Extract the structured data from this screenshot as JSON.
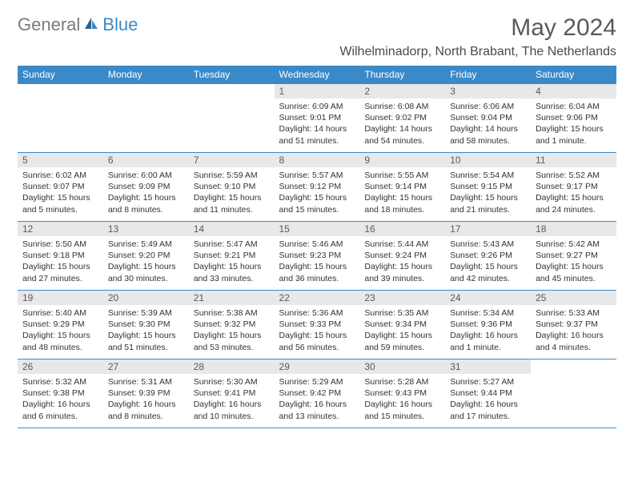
{
  "logo": {
    "text1": "General",
    "text2": "Blue"
  },
  "title": "May 2024",
  "location": "Wilhelminadorp, North Brabant, The Netherlands",
  "colors": {
    "header_bg": "#3a8ac9",
    "header_text": "#ffffff",
    "daynum_bg": "#e8e8e8",
    "daynum_text": "#5a5a5a",
    "body_text": "#333333",
    "border": "#3a8ac9",
    "logo_gray": "#7a7a7a",
    "logo_blue": "#3a8ac9"
  },
  "weekdays": [
    "Sunday",
    "Monday",
    "Tuesday",
    "Wednesday",
    "Thursday",
    "Friday",
    "Saturday"
  ],
  "weeks": [
    [
      null,
      null,
      null,
      {
        "n": "1",
        "sr": "Sunrise: 6:09 AM",
        "ss": "Sunset: 9:01 PM",
        "dl": "Daylight: 14 hours and 51 minutes."
      },
      {
        "n": "2",
        "sr": "Sunrise: 6:08 AM",
        "ss": "Sunset: 9:02 PM",
        "dl": "Daylight: 14 hours and 54 minutes."
      },
      {
        "n": "3",
        "sr": "Sunrise: 6:06 AM",
        "ss": "Sunset: 9:04 PM",
        "dl": "Daylight: 14 hours and 58 minutes."
      },
      {
        "n": "4",
        "sr": "Sunrise: 6:04 AM",
        "ss": "Sunset: 9:06 PM",
        "dl": "Daylight: 15 hours and 1 minute."
      }
    ],
    [
      {
        "n": "5",
        "sr": "Sunrise: 6:02 AM",
        "ss": "Sunset: 9:07 PM",
        "dl": "Daylight: 15 hours and 5 minutes."
      },
      {
        "n": "6",
        "sr": "Sunrise: 6:00 AM",
        "ss": "Sunset: 9:09 PM",
        "dl": "Daylight: 15 hours and 8 minutes."
      },
      {
        "n": "7",
        "sr": "Sunrise: 5:59 AM",
        "ss": "Sunset: 9:10 PM",
        "dl": "Daylight: 15 hours and 11 minutes."
      },
      {
        "n": "8",
        "sr": "Sunrise: 5:57 AM",
        "ss": "Sunset: 9:12 PM",
        "dl": "Daylight: 15 hours and 15 minutes."
      },
      {
        "n": "9",
        "sr": "Sunrise: 5:55 AM",
        "ss": "Sunset: 9:14 PM",
        "dl": "Daylight: 15 hours and 18 minutes."
      },
      {
        "n": "10",
        "sr": "Sunrise: 5:54 AM",
        "ss": "Sunset: 9:15 PM",
        "dl": "Daylight: 15 hours and 21 minutes."
      },
      {
        "n": "11",
        "sr": "Sunrise: 5:52 AM",
        "ss": "Sunset: 9:17 PM",
        "dl": "Daylight: 15 hours and 24 minutes."
      }
    ],
    [
      {
        "n": "12",
        "sr": "Sunrise: 5:50 AM",
        "ss": "Sunset: 9:18 PM",
        "dl": "Daylight: 15 hours and 27 minutes."
      },
      {
        "n": "13",
        "sr": "Sunrise: 5:49 AM",
        "ss": "Sunset: 9:20 PM",
        "dl": "Daylight: 15 hours and 30 minutes."
      },
      {
        "n": "14",
        "sr": "Sunrise: 5:47 AM",
        "ss": "Sunset: 9:21 PM",
        "dl": "Daylight: 15 hours and 33 minutes."
      },
      {
        "n": "15",
        "sr": "Sunrise: 5:46 AM",
        "ss": "Sunset: 9:23 PM",
        "dl": "Daylight: 15 hours and 36 minutes."
      },
      {
        "n": "16",
        "sr": "Sunrise: 5:44 AM",
        "ss": "Sunset: 9:24 PM",
        "dl": "Daylight: 15 hours and 39 minutes."
      },
      {
        "n": "17",
        "sr": "Sunrise: 5:43 AM",
        "ss": "Sunset: 9:26 PM",
        "dl": "Daylight: 15 hours and 42 minutes."
      },
      {
        "n": "18",
        "sr": "Sunrise: 5:42 AM",
        "ss": "Sunset: 9:27 PM",
        "dl": "Daylight: 15 hours and 45 minutes."
      }
    ],
    [
      {
        "n": "19",
        "sr": "Sunrise: 5:40 AM",
        "ss": "Sunset: 9:29 PM",
        "dl": "Daylight: 15 hours and 48 minutes."
      },
      {
        "n": "20",
        "sr": "Sunrise: 5:39 AM",
        "ss": "Sunset: 9:30 PM",
        "dl": "Daylight: 15 hours and 51 minutes."
      },
      {
        "n": "21",
        "sr": "Sunrise: 5:38 AM",
        "ss": "Sunset: 9:32 PM",
        "dl": "Daylight: 15 hours and 53 minutes."
      },
      {
        "n": "22",
        "sr": "Sunrise: 5:36 AM",
        "ss": "Sunset: 9:33 PM",
        "dl": "Daylight: 15 hours and 56 minutes."
      },
      {
        "n": "23",
        "sr": "Sunrise: 5:35 AM",
        "ss": "Sunset: 9:34 PM",
        "dl": "Daylight: 15 hours and 59 minutes."
      },
      {
        "n": "24",
        "sr": "Sunrise: 5:34 AM",
        "ss": "Sunset: 9:36 PM",
        "dl": "Daylight: 16 hours and 1 minute."
      },
      {
        "n": "25",
        "sr": "Sunrise: 5:33 AM",
        "ss": "Sunset: 9:37 PM",
        "dl": "Daylight: 16 hours and 4 minutes."
      }
    ],
    [
      {
        "n": "26",
        "sr": "Sunrise: 5:32 AM",
        "ss": "Sunset: 9:38 PM",
        "dl": "Daylight: 16 hours and 6 minutes."
      },
      {
        "n": "27",
        "sr": "Sunrise: 5:31 AM",
        "ss": "Sunset: 9:39 PM",
        "dl": "Daylight: 16 hours and 8 minutes."
      },
      {
        "n": "28",
        "sr": "Sunrise: 5:30 AM",
        "ss": "Sunset: 9:41 PM",
        "dl": "Daylight: 16 hours and 10 minutes."
      },
      {
        "n": "29",
        "sr": "Sunrise: 5:29 AM",
        "ss": "Sunset: 9:42 PM",
        "dl": "Daylight: 16 hours and 13 minutes."
      },
      {
        "n": "30",
        "sr": "Sunrise: 5:28 AM",
        "ss": "Sunset: 9:43 PM",
        "dl": "Daylight: 16 hours and 15 minutes."
      },
      {
        "n": "31",
        "sr": "Sunrise: 5:27 AM",
        "ss": "Sunset: 9:44 PM",
        "dl": "Daylight: 16 hours and 17 minutes."
      },
      null
    ]
  ]
}
